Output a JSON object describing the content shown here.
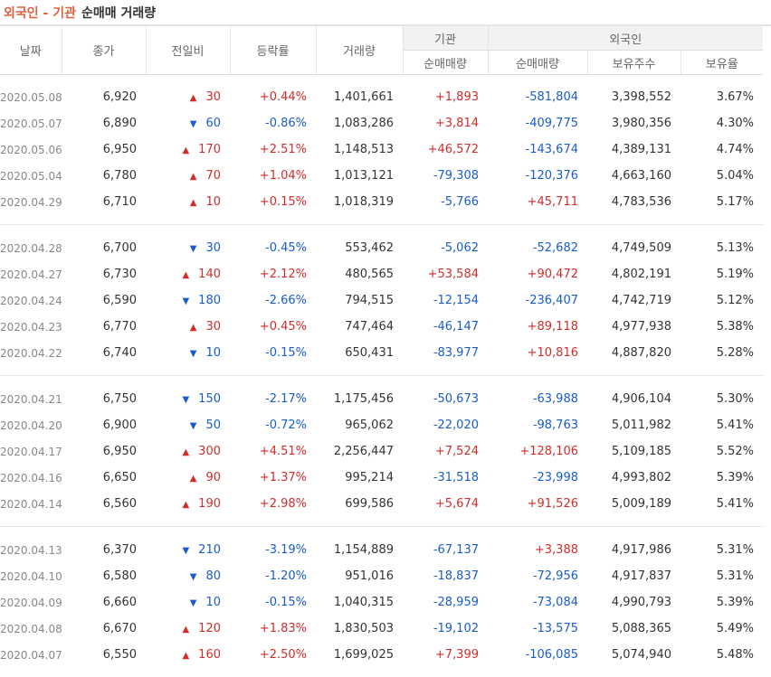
{
  "header": {
    "title_main": "외국인 - 기관",
    "title_sub": "순매매 거래량"
  },
  "columns": {
    "date": "날짜",
    "close": "종가",
    "change": "전일비",
    "rate": "등락률",
    "volume": "거래량",
    "inst_group": "기관",
    "inst_net": "순매매량",
    "foreign_group": "외국인",
    "foreign_net": "순매매량",
    "foreign_holding": "보유주수",
    "foreign_ratio": "보유율"
  },
  "colors": {
    "up": "#d12d2d",
    "down": "#1a5cc8",
    "title_accent": "#e0603e"
  },
  "groups": [
    [
      {
        "date": "2020.05.08",
        "close": "6,920",
        "dir": "up",
        "change": "30",
        "rate": "+0.44%",
        "volume": "1,401,661",
        "inst": "+1,893",
        "foreign": "-581,804",
        "holding": "3,398,552",
        "ratio": "3.67%"
      },
      {
        "date": "2020.05.07",
        "close": "6,890",
        "dir": "down",
        "change": "60",
        "rate": "-0.86%",
        "volume": "1,083,286",
        "inst": "+3,814",
        "foreign": "-409,775",
        "holding": "3,980,356",
        "ratio": "4.30%"
      },
      {
        "date": "2020.05.06",
        "close": "6,950",
        "dir": "up",
        "change": "170",
        "rate": "+2.51%",
        "volume": "1,148,513",
        "inst": "+46,572",
        "foreign": "-143,674",
        "holding": "4,389,131",
        "ratio": "4.74%"
      },
      {
        "date": "2020.05.04",
        "close": "6,780",
        "dir": "up",
        "change": "70",
        "rate": "+1.04%",
        "volume": "1,013,121",
        "inst": "-79,308",
        "foreign": "-120,376",
        "holding": "4,663,160",
        "ratio": "5.04%"
      },
      {
        "date": "2020.04.29",
        "close": "6,710",
        "dir": "up",
        "change": "10",
        "rate": "+0.15%",
        "volume": "1,018,319",
        "inst": "-5,766",
        "foreign": "+45,711",
        "holding": "4,783,536",
        "ratio": "5.17%"
      }
    ],
    [
      {
        "date": "2020.04.28",
        "close": "6,700",
        "dir": "down",
        "change": "30",
        "rate": "-0.45%",
        "volume": "553,462",
        "inst": "-5,062",
        "foreign": "-52,682",
        "holding": "4,749,509",
        "ratio": "5.13%"
      },
      {
        "date": "2020.04.27",
        "close": "6,730",
        "dir": "up",
        "change": "140",
        "rate": "+2.12%",
        "volume": "480,565",
        "inst": "+53,584",
        "foreign": "+90,472",
        "holding": "4,802,191",
        "ratio": "5.19%"
      },
      {
        "date": "2020.04.24",
        "close": "6,590",
        "dir": "down",
        "change": "180",
        "rate": "-2.66%",
        "volume": "794,515",
        "inst": "-12,154",
        "foreign": "-236,407",
        "holding": "4,742,719",
        "ratio": "5.12%"
      },
      {
        "date": "2020.04.23",
        "close": "6,770",
        "dir": "up",
        "change": "30",
        "rate": "+0.45%",
        "volume": "747,464",
        "inst": "-46,147",
        "foreign": "+89,118",
        "holding": "4,977,938",
        "ratio": "5.38%"
      },
      {
        "date": "2020.04.22",
        "close": "6,740",
        "dir": "down",
        "change": "10",
        "rate": "-0.15%",
        "volume": "650,431",
        "inst": "-83,977",
        "foreign": "+10,816",
        "holding": "4,887,820",
        "ratio": "5.28%"
      }
    ],
    [
      {
        "date": "2020.04.21",
        "close": "6,750",
        "dir": "down",
        "change": "150",
        "rate": "-2.17%",
        "volume": "1,175,456",
        "inst": "-50,673",
        "foreign": "-63,988",
        "holding": "4,906,104",
        "ratio": "5.30%"
      },
      {
        "date": "2020.04.20",
        "close": "6,900",
        "dir": "down",
        "change": "50",
        "rate": "-0.72%",
        "volume": "965,062",
        "inst": "-22,020",
        "foreign": "-98,763",
        "holding": "5,011,982",
        "ratio": "5.41%"
      },
      {
        "date": "2020.04.17",
        "close": "6,950",
        "dir": "up",
        "change": "300",
        "rate": "+4.51%",
        "volume": "2,256,447",
        "inst": "+7,524",
        "foreign": "+128,106",
        "holding": "5,109,185",
        "ratio": "5.52%"
      },
      {
        "date": "2020.04.16",
        "close": "6,650",
        "dir": "up",
        "change": "90",
        "rate": "+1.37%",
        "volume": "995,214",
        "inst": "-31,518",
        "foreign": "-23,998",
        "holding": "4,993,802",
        "ratio": "5.39%"
      },
      {
        "date": "2020.04.14",
        "close": "6,560",
        "dir": "up",
        "change": "190",
        "rate": "+2.98%",
        "volume": "699,586",
        "inst": "+5,674",
        "foreign": "+91,526",
        "holding": "5,009,189",
        "ratio": "5.41%"
      }
    ],
    [
      {
        "date": "2020.04.13",
        "close": "6,370",
        "dir": "down",
        "change": "210",
        "rate": "-3.19%",
        "volume": "1,154,889",
        "inst": "-67,137",
        "foreign": "+3,388",
        "holding": "4,917,986",
        "ratio": "5.31%"
      },
      {
        "date": "2020.04.10",
        "close": "6,580",
        "dir": "down",
        "change": "80",
        "rate": "-1.20%",
        "volume": "951,016",
        "inst": "-18,837",
        "foreign": "-72,956",
        "holding": "4,917,837",
        "ratio": "5.31%"
      },
      {
        "date": "2020.04.09",
        "close": "6,660",
        "dir": "down",
        "change": "10",
        "rate": "-0.15%",
        "volume": "1,040,315",
        "inst": "-28,959",
        "foreign": "-73,084",
        "holding": "4,990,793",
        "ratio": "5.39%"
      },
      {
        "date": "2020.04.08",
        "close": "6,670",
        "dir": "up",
        "change": "120",
        "rate": "+1.83%",
        "volume": "1,830,503",
        "inst": "-19,102",
        "foreign": "-13,575",
        "holding": "5,088,365",
        "ratio": "5.49%"
      },
      {
        "date": "2020.04.07",
        "close": "6,550",
        "dir": "up",
        "change": "160",
        "rate": "+2.50%",
        "volume": "1,699,025",
        "inst": "+7,399",
        "foreign": "-106,085",
        "holding": "5,074,940",
        "ratio": "5.48%"
      }
    ]
  ]
}
